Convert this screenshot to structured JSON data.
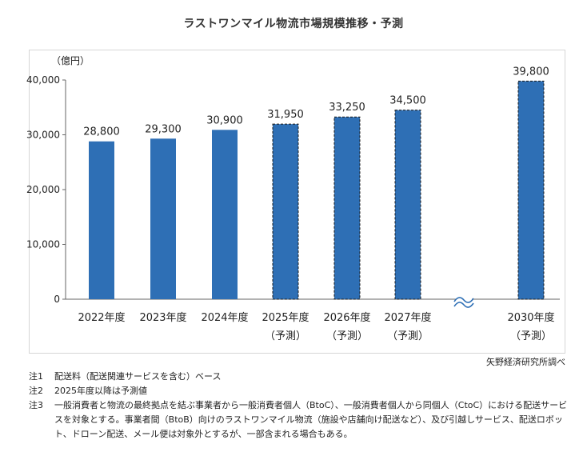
{
  "chart_data": {
    "type": "bar",
    "title": "ラストワンマイル物流市場規模推移・予測",
    "unit_label": "（億円）",
    "ylim": [
      0,
      40000
    ],
    "y_ticks": [
      "0",
      "10,000",
      "20,000",
      "30,000",
      "40,000"
    ],
    "y_tick_values": [
      0,
      10000,
      20000,
      30000,
      40000
    ],
    "categories": [
      "2022年度",
      "2023年度",
      "2024年度",
      "2025年度",
      "2026年度",
      "2027年度",
      "2030年度"
    ],
    "sub_labels": [
      "",
      "",
      "",
      "（予測）",
      "（予測）",
      "（予測）",
      "（予測）"
    ],
    "values": [
      28800,
      29300,
      30900,
      31950,
      33250,
      34500,
      39800
    ],
    "value_labels": [
      "28,800",
      "29,300",
      "30,900",
      "31,950",
      "33,250",
      "34,500",
      "39,800"
    ],
    "forecast": [
      false,
      false,
      false,
      true,
      true,
      true,
      true
    ],
    "axis_break": "≈",
    "bar_color": "#2e6fb5"
  },
  "source": "矢野経済研究所調べ",
  "notes": [
    {
      "label": "注1",
      "text": "配送料（配送関連サービスを含む）ベース"
    },
    {
      "label": "注2",
      "text": "2025年度以降は予測値"
    },
    {
      "label": "注3",
      "text": "一般消費者と物流の最終拠点を結ぶ事業者から一般消費者個人（BtoC）、一般消費者個人から同個人（CtoC）における配送サービスを対象とする。事業者間（BtoB）向けのラストワンマイル物流（施設や店舗向け配送など）、及び引越しサービス、配送ロボット、ドローン配送、メール便は対象外とするが、一部含まれる場合もある。"
    }
  ]
}
